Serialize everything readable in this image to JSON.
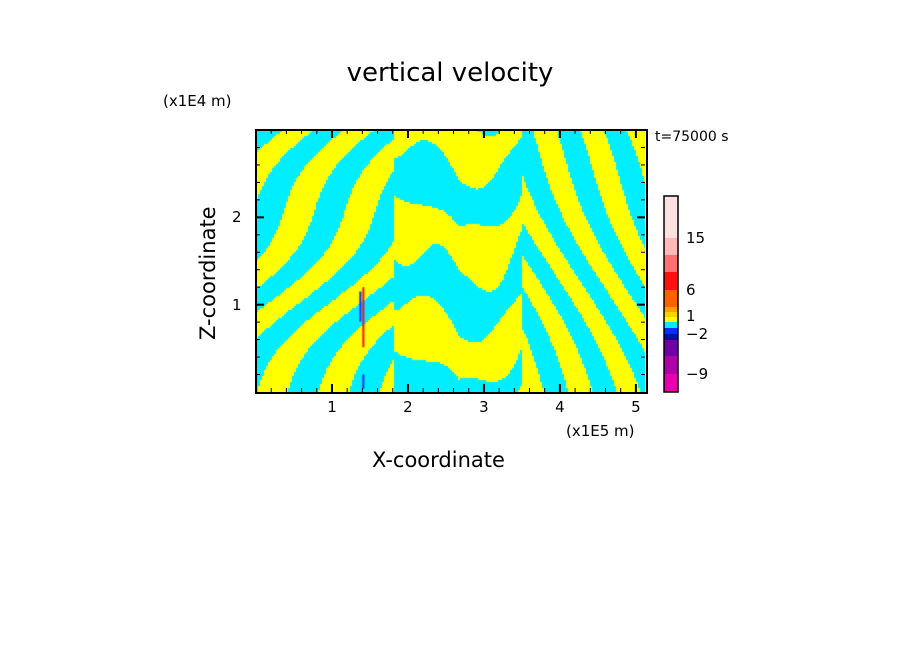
{
  "chart_data": {
    "type": "heatmap",
    "title": "vertical velocity",
    "xlabel": "X-coordinate",
    "ylabel": "Z-coordinate",
    "x_unit": "(x1E5 m)",
    "y_unit": "(x1E4 m)",
    "annotation": "t=75000 s",
    "xlim": [
      0,
      5.12
    ],
    "ylim": [
      0,
      3
    ],
    "x_ticks": [
      "1",
      "2",
      "3",
      "4",
      "5"
    ],
    "x_tick_values": [
      1,
      2,
      3,
      4,
      5
    ],
    "y_ticks": [
      "1",
      "2"
    ],
    "y_tick_values": [
      1,
      2
    ],
    "dominant_colors": [
      "#ffff00",
      "#00eeff"
    ],
    "colorbar": {
      "labels": [
        "15",
        "6",
        "1",
        "−2",
        "−9"
      ],
      "label_values": [
        15,
        6,
        1,
        -2,
        -9
      ],
      "colors_bottom_to_top": [
        "#e800b0",
        "#b000a8",
        "#7000a8",
        "#0010a0",
        "#0030ff",
        "#00eeff",
        "#ffff00",
        "#ffd000",
        "#ffa000",
        "#ff6000",
        "#ff1010",
        "#ff7070",
        "#ffb8b8",
        "#ffe0e0"
      ]
    }
  }
}
